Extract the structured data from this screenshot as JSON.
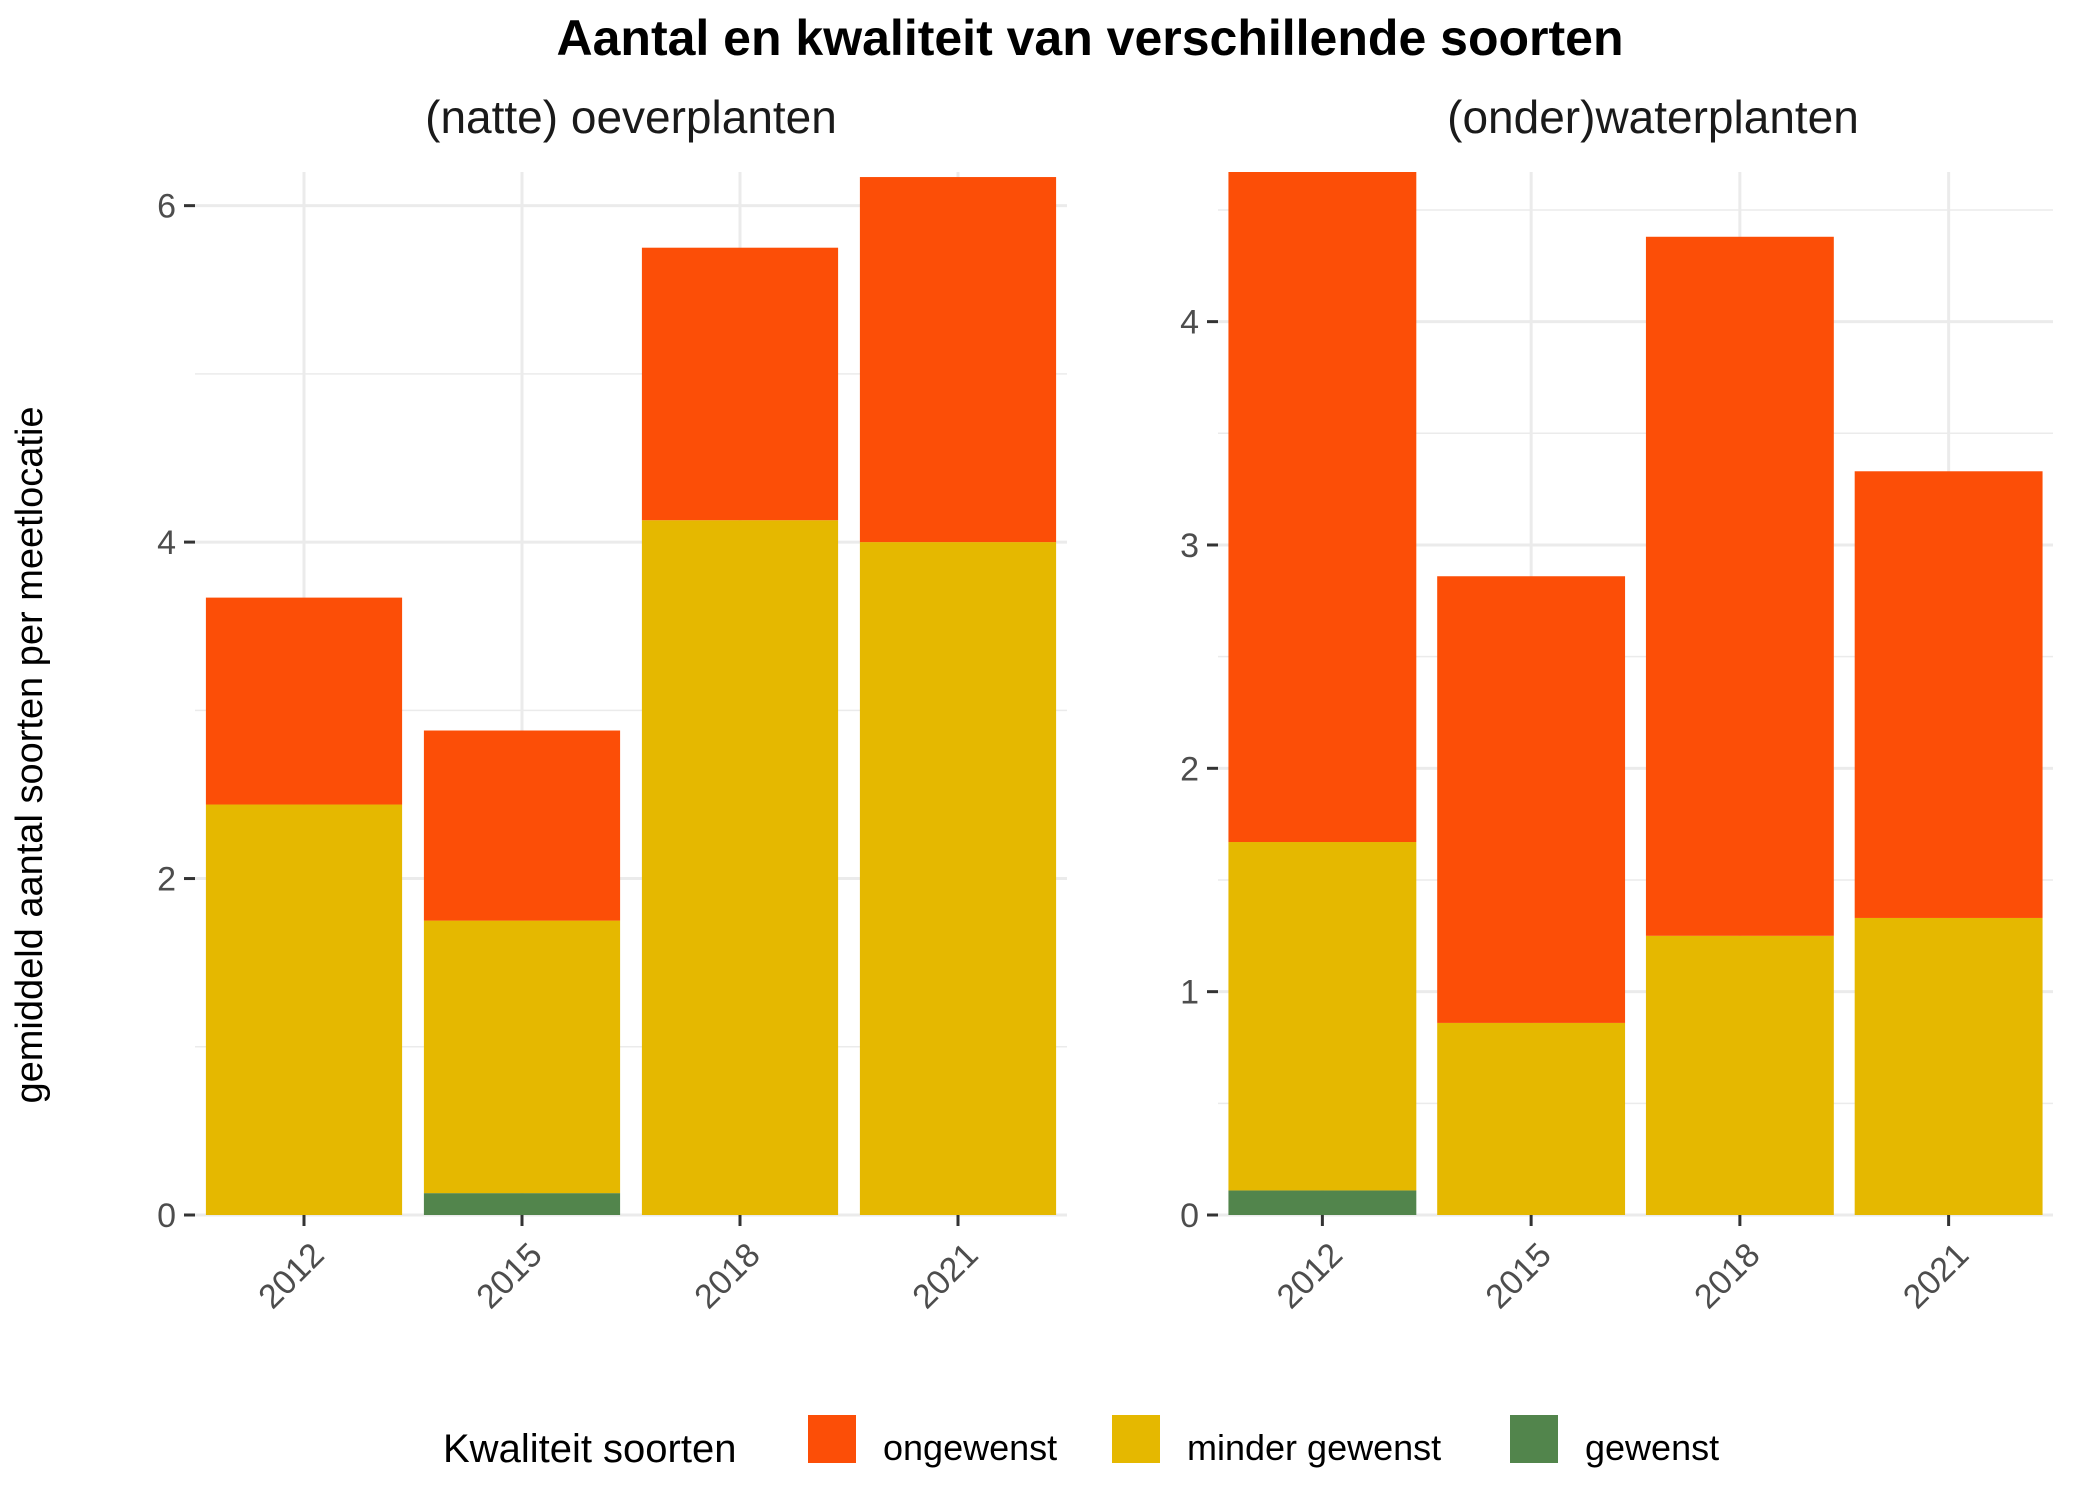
{
  "chart_data": {
    "type": "bar",
    "stacked": true,
    "title": "Aantal en kwaliteit van verschillende soorten",
    "ylabel": "gemiddeld aantal soorten per meetlocatie",
    "legend": {
      "title": "Kwaliteit soorten",
      "position": "bottom",
      "entries": [
        {
          "name": "ongewenst",
          "color": "#fc4e07"
        },
        {
          "name": "minder gewenst",
          "color": "#e5b800"
        },
        {
          "name": "gewenst",
          "color": "#52854c"
        }
      ]
    },
    "panels": [
      {
        "title": "(natte) oeverplanten",
        "categories": [
          "2012",
          "2015",
          "2018",
          "2021"
        ],
        "ylim": [
          0,
          6.2
        ],
        "yticks": [
          0,
          2,
          4,
          6
        ],
        "yminor": [
          1,
          3,
          5
        ],
        "series": [
          {
            "name": "gewenst",
            "color": "#52854c",
            "values": [
              0,
              0.13,
              0,
              0
            ]
          },
          {
            "name": "minder gewenst",
            "color": "#e5b800",
            "values": [
              2.44,
              1.62,
              4.13,
              4.0
            ]
          },
          {
            "name": "ongewenst",
            "color": "#fc4e07",
            "values": [
              1.23,
              1.13,
              1.62,
              2.17
            ]
          }
        ]
      },
      {
        "title": "(onder)waterplanten",
        "categories": [
          "2012",
          "2015",
          "2018",
          "2021"
        ],
        "ylim": [
          0,
          4.67
        ],
        "yticks": [
          0,
          1,
          2,
          3,
          4
        ],
        "yminor": [
          0.5,
          1.5,
          2.5,
          3.5,
          4.5
        ],
        "series": [
          {
            "name": "gewenst",
            "color": "#52854c",
            "values": [
              0.11,
              0,
              0,
              0
            ]
          },
          {
            "name": "minder gewenst",
            "color": "#e5b800",
            "values": [
              1.56,
              0.86,
              1.25,
              1.33
            ]
          },
          {
            "name": "ongewenst",
            "color": "#fc4e07",
            "values": [
              3.0,
              2.0,
              3.13,
              2.0
            ]
          }
        ]
      }
    ]
  }
}
